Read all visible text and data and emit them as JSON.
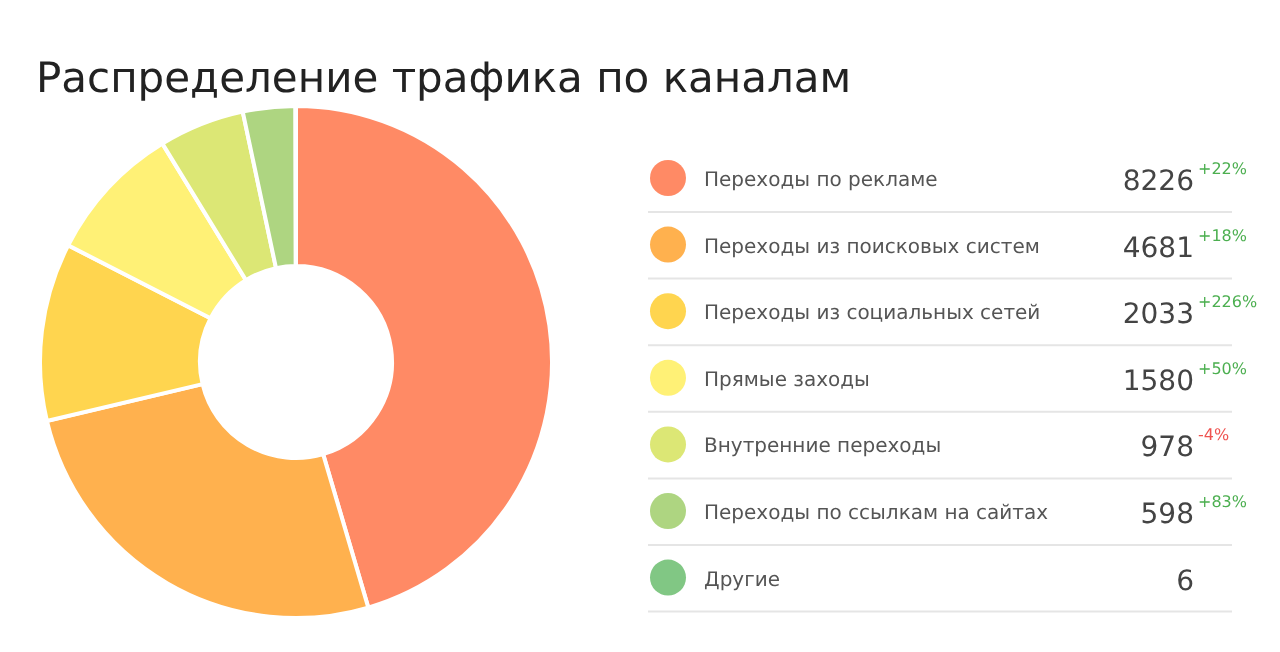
{
  "chart_data": {
    "type": "donut",
    "title": "Распределение трафика по каналам",
    "categories": [
      "Переходы по рекламе",
      "Переходы из поисковых систем",
      "Переходы из социальных сетей",
      "Прямые заходы",
      "Внутренние переходы",
      "Переходы по ссылкам на сайтах",
      "Другие"
    ],
    "values": [
      8226,
      4681,
      2033,
      1580,
      978,
      598,
      6
    ],
    "colors": [
      "#ff8a65",
      "#ffb14e",
      "#ffd54f",
      "#fff176",
      "#dce775",
      "#aed581",
      "#81c784"
    ],
    "data_labels": true,
    "legend": "right",
    "annotations": [
      "+22%",
      "+18%",
      "+226%",
      "+50%",
      "-4%",
      "+83%"
    ]
  }
}
